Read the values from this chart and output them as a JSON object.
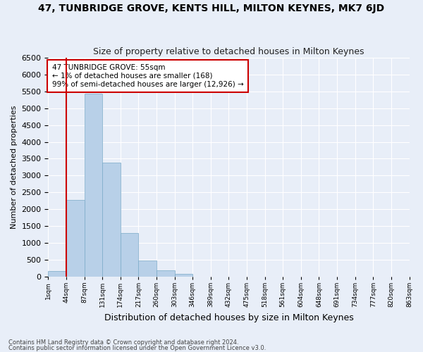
{
  "title": "47, TUNBRIDGE GROVE, KENTS HILL, MILTON KEYNES, MK7 6JD",
  "subtitle": "Size of property relative to detached houses in Milton Keynes",
  "xlabel": "Distribution of detached houses by size in Milton Keynes",
  "ylabel": "Number of detached properties",
  "footnote1": "Contains HM Land Registry data © Crown copyright and database right 2024.",
  "footnote2": "Contains public sector information licensed under the Open Government Licence v3.0.",
  "bin_labels": [
    "1sqm",
    "44sqm",
    "87sqm",
    "131sqm",
    "174sqm",
    "217sqm",
    "260sqm",
    "303sqm",
    "346sqm",
    "389sqm",
    "432sqm",
    "475sqm",
    "518sqm",
    "561sqm",
    "604sqm",
    "648sqm",
    "691sqm",
    "734sqm",
    "777sqm",
    "820sqm",
    "863sqm"
  ],
  "bar_values": [
    168,
    2280,
    5430,
    3390,
    1290,
    480,
    185,
    80,
    0,
    0,
    0,
    0,
    0,
    0,
    0,
    0,
    0,
    0,
    0,
    0
  ],
  "bar_color": "#b8d0e8",
  "bar_edge_color": "#7aaac8",
  "vline_color": "#cc0000",
  "annotation_title": "47 TUNBRIDGE GROVE: 55sqm",
  "annotation_line1": "← 1% of detached houses are smaller (168)",
  "annotation_line2": "99% of semi-detached houses are larger (12,926) →",
  "annotation_box_facecolor": "#ffffff",
  "annotation_box_edgecolor": "#cc0000",
  "ylim": [
    0,
    6500
  ],
  "yticks": [
    0,
    500,
    1000,
    1500,
    2000,
    2500,
    3000,
    3500,
    4000,
    4500,
    5000,
    5500,
    6000,
    6500
  ],
  "bg_color": "#e8eef8",
  "plot_bg_color": "#e8eef8",
  "grid_color": "#ffffff",
  "title_fontsize": 10,
  "subtitle_fontsize": 9,
  "ylabel_fontsize": 8,
  "xlabel_fontsize": 9
}
